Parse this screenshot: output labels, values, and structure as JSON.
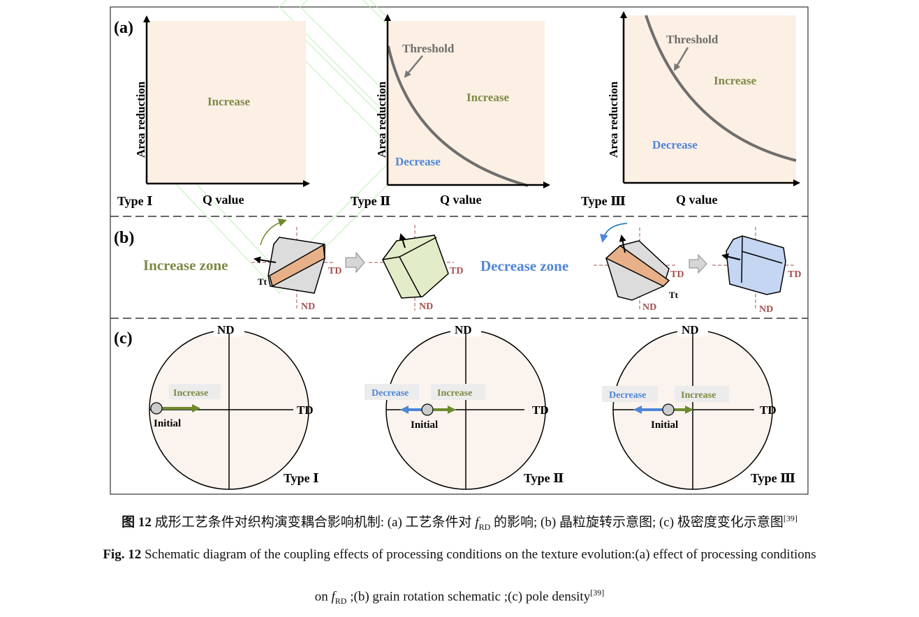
{
  "panels": {
    "a": {
      "label": "(a)",
      "y_axis": "Area reduction",
      "x_axis": "Q value",
      "plots": [
        {
          "type": "Type Ⅰ",
          "increase": "Increase"
        },
        {
          "type": "Type Ⅱ",
          "threshold": "Threshold",
          "increase": "Increase",
          "decrease": "Decrease"
        },
        {
          "type": "Type Ⅲ",
          "threshold": "Threshold",
          "increase": "Increase",
          "decrease": "Decrease"
        }
      ]
    },
    "b": {
      "label": "(b)",
      "increase_zone": "Increase zone",
      "decrease_zone": "Decrease zone",
      "td": "TD",
      "nd": "ND",
      "tt": "Tt"
    },
    "c": {
      "label": "(c)",
      "nd": "ND",
      "td": "TD",
      "initial": "Initial",
      "increase": "Increase",
      "decrease": "Decrease",
      "types": [
        "Type Ⅰ",
        "Type Ⅱ",
        "Type Ⅲ"
      ]
    }
  },
  "caption": {
    "cn_label": "图 12",
    "cn_text_1": " 成形工艺条件对织构演变耦合影响机制: (a) 工艺条件对 ",
    "f": "f",
    "sub": "RD",
    "cn_text_2": " 的影响; (b) 晶粒旋转示意图; (c) 极密度变化示意图",
    "ref": "[39]",
    "en_label": "Fig. 12",
    "en_text_1": " Schematic diagram of the coupling effects of processing conditions on the texture evolution:(a) effect of processing conditions",
    "en_text_2a": "on ",
    "en_text_2b": " ;(b) grain rotation schematic ;(c) pole density"
  },
  "colors": {
    "panel_bg": "#fcefe3",
    "increase": "#7d8a45",
    "decrease": "#4f86d8",
    "threshold": "#6e6e6e",
    "axis_dash": "#a5504f",
    "grain_gray": "#dcdcdc",
    "twin_orange": "#e8b088",
    "grain_green": "#e2ecc8",
    "grain_blue": "#c4d6f2"
  }
}
